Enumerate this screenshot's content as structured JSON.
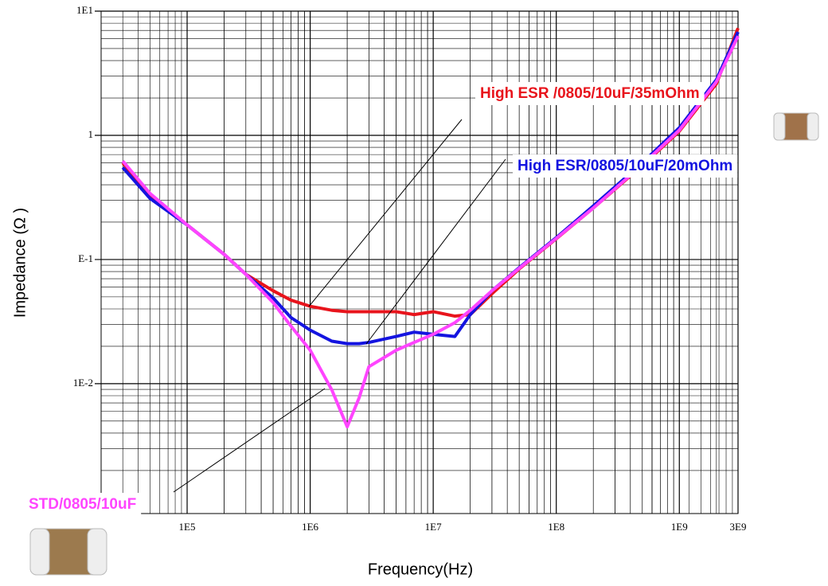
{
  "chart_data": {
    "type": "line",
    "x_label": "Frequency(Hz)",
    "y_label": "Impedance (Ω )",
    "x": [
      30000,
      50000,
      100000,
      200000,
      300000,
      500000,
      700000,
      1000000,
      1500000,
      2000000,
      2500000,
      3000000,
      5000000,
      7000000,
      10000000,
      15000000,
      20000000,
      30000000,
      50000000,
      100000000,
      200000000,
      500000000,
      1000000000,
      2000000000,
      3000000000
    ],
    "series": [
      {
        "name": "High ESR /0805/10uF/35mOhm",
        "color": "#e8141c",
        "values": [
          0.6,
          0.33,
          0.19,
          0.11,
          0.076,
          0.056,
          0.047,
          0.042,
          0.039,
          0.038,
          0.038,
          0.038,
          0.038,
          0.036,
          0.038,
          0.035,
          0.036,
          0.053,
          0.084,
          0.147,
          0.26,
          0.57,
          1.08,
          2.6,
          7.3
        ]
      },
      {
        "name": "High ESR/0805/10uF/20mOhm",
        "color": "#1414e0",
        "values": [
          0.55,
          0.31,
          0.19,
          0.11,
          0.076,
          0.049,
          0.034,
          0.027,
          0.022,
          0.021,
          0.021,
          0.0215,
          0.024,
          0.026,
          0.025,
          0.024,
          0.036,
          0.056,
          0.086,
          0.15,
          0.27,
          0.6,
          1.15,
          2.8,
          6.8
        ]
      },
      {
        "name": "STD/0805/10uF",
        "color": "#ff44ff",
        "values": [
          0.62,
          0.34,
          0.19,
          0.11,
          0.076,
          0.045,
          0.029,
          0.0186,
          0.0089,
          0.0045,
          0.0077,
          0.0137,
          0.0186,
          0.0215,
          0.025,
          0.031,
          0.039,
          0.056,
          0.085,
          0.148,
          0.26,
          0.58,
          1.1,
          2.7,
          6.3
        ]
      }
    ],
    "xlim": [
      20000,
      3000000000
    ],
    "xticks": [
      {
        "value": 100000,
        "label": "1E5"
      },
      {
        "value": 1000000,
        "label": "1E6"
      },
      {
        "value": 10000000,
        "label": "1E7"
      },
      {
        "value": 100000000,
        "label": "1E8"
      },
      {
        "value": 1000000000,
        "label": "1E9"
      },
      {
        "value": 3000000000,
        "label": "3E9"
      }
    ],
    "ylim": [
      0.0009,
      10
    ],
    "yticks": [
      {
        "value": 0.01,
        "label": "1E-2"
      },
      {
        "value": 0.1,
        "label": "E-1"
      },
      1,
      {
        "value": 10,
        "label": "1E1"
      }
    ],
    "log_x": true,
    "log_y": true,
    "grid": true,
    "minor_grid": true
  }
}
